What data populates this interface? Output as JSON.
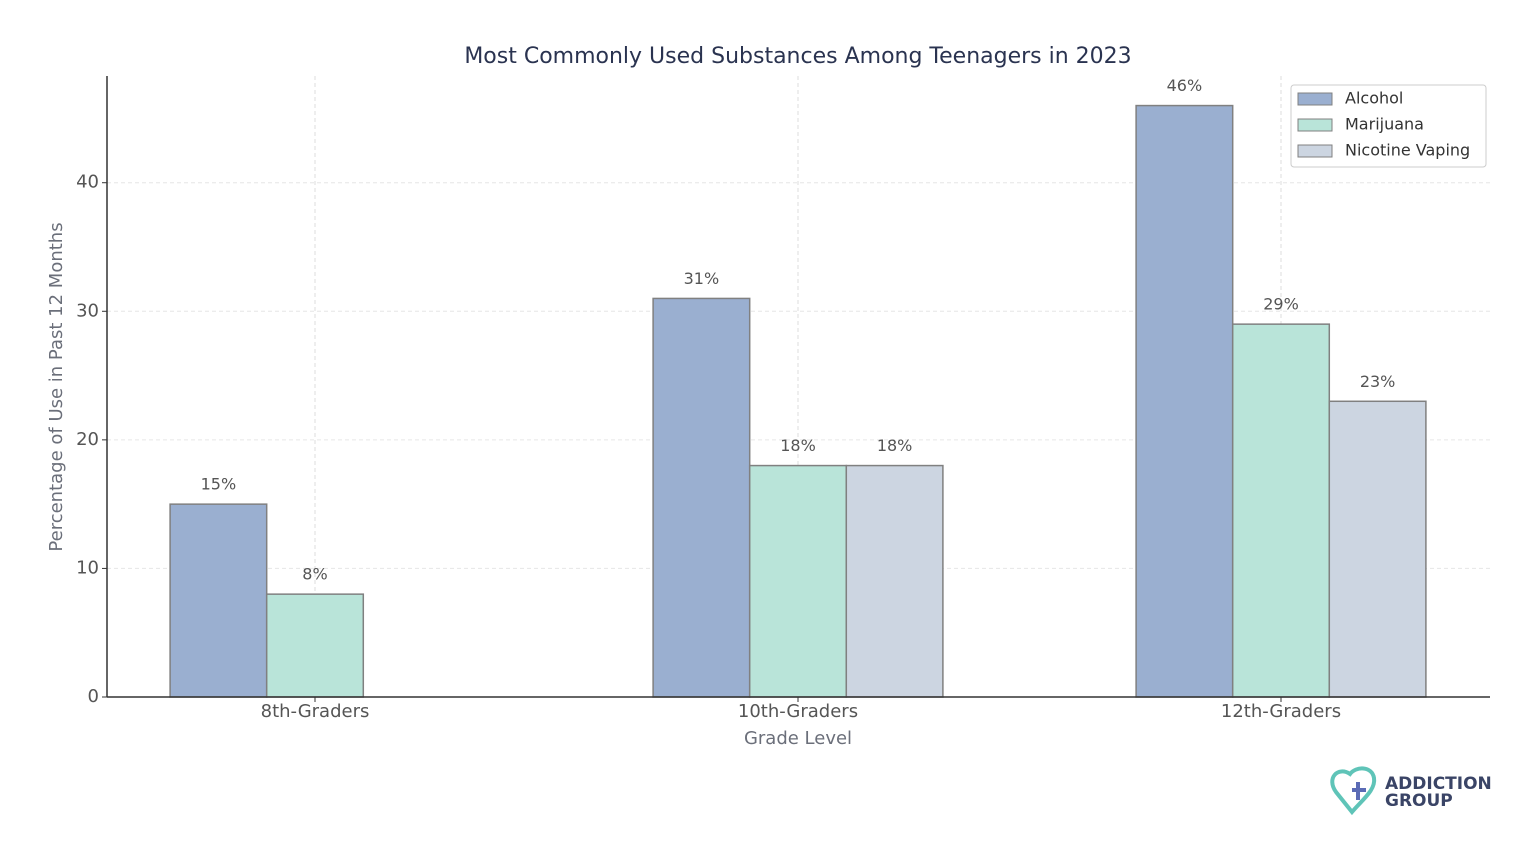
{
  "chart_data": {
    "type": "bar",
    "title": "Most Commonly Used Substances Among Teenagers in 2023",
    "x_label": "Grade Level",
    "y_label": "Percentage of Use in Past 12 Months",
    "categories": [
      "8th-Graders",
      "10th-Graders",
      "12th-Graders"
    ],
    "series": [
      {
        "name": "Alcohol",
        "color": "#9aafd0",
        "values": [
          15,
          31,
          46
        ],
        "value_labels": [
          "15%",
          "31%",
          "46%"
        ]
      },
      {
        "name": "Marijuana",
        "color": "#b9e4d9",
        "values": [
          8,
          18,
          29
        ],
        "value_labels": [
          "8%",
          "18%",
          "29%"
        ]
      },
      {
        "name": "Nicotine Vaping",
        "color": "#ccd5e1",
        "values": [
          null,
          18,
          23
        ],
        "value_labels": [
          null,
          "18%",
          "23%"
        ]
      }
    ],
    "ylim": [
      0,
      48.3
    ],
    "yticks": [
      0,
      10,
      20,
      30,
      40
    ],
    "grid": true,
    "legend": "upper right"
  },
  "logo": {
    "line1": "ADDICTION",
    "line2": "GROUP"
  }
}
